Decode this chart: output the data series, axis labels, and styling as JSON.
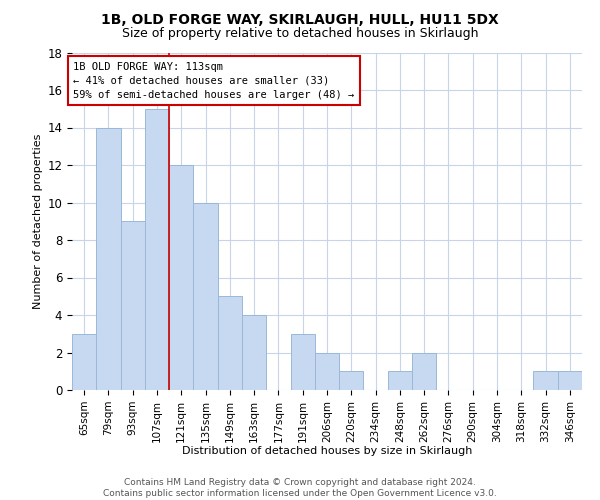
{
  "title": "1B, OLD FORGE WAY, SKIRLAUGH, HULL, HU11 5DX",
  "subtitle": "Size of property relative to detached houses in Skirlaugh",
  "xlabel": "Distribution of detached houses by size in Skirlaugh",
  "ylabel": "Number of detached properties",
  "bar_color": "#c6d9f0",
  "bar_edge_color": "#9ab8d8",
  "categories": [
    "65sqm",
    "79sqm",
    "93sqm",
    "107sqm",
    "121sqm",
    "135sqm",
    "149sqm",
    "163sqm",
    "177sqm",
    "191sqm",
    "206sqm",
    "220sqm",
    "234sqm",
    "248sqm",
    "262sqm",
    "276sqm",
    "290sqm",
    "304sqm",
    "318sqm",
    "332sqm",
    "346sqm"
  ],
  "values": [
    3,
    14,
    9,
    15,
    12,
    10,
    5,
    4,
    0,
    3,
    2,
    1,
    0,
    1,
    2,
    0,
    0,
    0,
    0,
    1,
    1
  ],
  "ylim": [
    0,
    18
  ],
  "yticks": [
    0,
    2,
    4,
    6,
    8,
    10,
    12,
    14,
    16,
    18
  ],
  "property_line_x": 3.5,
  "property_line_color": "#cc0000",
  "annotation_text": "1B OLD FORGE WAY: 113sqm\n← 41% of detached houses are smaller (33)\n59% of semi-detached houses are larger (48) →",
  "footer_line1": "Contains HM Land Registry data © Crown copyright and database right 2024.",
  "footer_line2": "Contains public sector information licensed under the Open Government Licence v3.0.",
  "background_color": "#ffffff",
  "grid_color": "#c8d4e8",
  "title_fontsize": 10,
  "subtitle_fontsize": 9,
  "axis_label_fontsize": 8,
  "tick_fontsize": 7.5,
  "annotation_fontsize": 7.5,
  "footer_fontsize": 6.5
}
